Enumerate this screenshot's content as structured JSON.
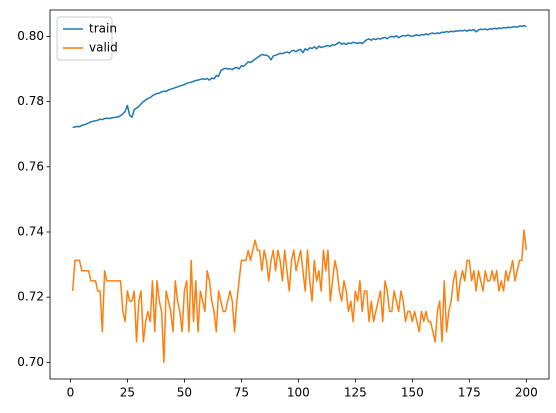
{
  "chart_data": {
    "type": "line",
    "x": [
      1,
      2,
      3,
      4,
      5,
      6,
      7,
      8,
      9,
      10,
      11,
      12,
      13,
      14,
      15,
      16,
      17,
      18,
      19,
      20,
      21,
      22,
      23,
      24,
      25,
      26,
      27,
      28,
      29,
      30,
      31,
      32,
      33,
      34,
      35,
      36,
      37,
      38,
      39,
      40,
      41,
      42,
      43,
      44,
      45,
      46,
      47,
      48,
      49,
      50,
      51,
      52,
      53,
      54,
      55,
      56,
      57,
      58,
      59,
      60,
      61,
      62,
      63,
      64,
      65,
      66,
      67,
      68,
      69,
      70,
      71,
      72,
      73,
      74,
      75,
      76,
      77,
      78,
      79,
      80,
      81,
      82,
      83,
      84,
      85,
      86,
      87,
      88,
      89,
      90,
      91,
      92,
      93,
      94,
      95,
      96,
      97,
      98,
      99,
      100,
      101,
      102,
      103,
      104,
      105,
      106,
      107,
      108,
      109,
      110,
      111,
      112,
      113,
      114,
      115,
      116,
      117,
      118,
      119,
      120,
      121,
      122,
      123,
      124,
      125,
      126,
      127,
      128,
      129,
      130,
      131,
      132,
      133,
      134,
      135,
      136,
      137,
      138,
      139,
      140,
      141,
      142,
      143,
      144,
      145,
      146,
      147,
      148,
      149,
      150,
      151,
      152,
      153,
      154,
      155,
      156,
      157,
      158,
      159,
      160,
      161,
      162,
      163,
      164,
      165,
      166,
      167,
      168,
      169,
      170,
      171,
      172,
      173,
      174,
      175,
      176,
      177,
      178,
      179,
      180,
      181,
      182,
      183,
      184,
      185,
      186,
      187,
      188,
      189,
      190,
      191,
      192,
      193,
      194,
      195,
      196,
      197,
      198,
      199,
      200
    ],
    "series": [
      {
        "name": "train",
        "color": "#1f77b4",
        "values": [
          0.7721,
          0.7722,
          0.7724,
          0.7723,
          0.7727,
          0.7729,
          0.7731,
          0.7735,
          0.7738,
          0.774,
          0.7741,
          0.7743,
          0.7746,
          0.7745,
          0.7748,
          0.7749,
          0.7748,
          0.775,
          0.7751,
          0.7752,
          0.7753,
          0.7757,
          0.7762,
          0.777,
          0.7788,
          0.7758,
          0.7752,
          0.7775,
          0.778,
          0.7785,
          0.7793,
          0.78,
          0.7805,
          0.781,
          0.7812,
          0.7818,
          0.7822,
          0.7825,
          0.7826,
          0.783,
          0.7832,
          0.7831,
          0.7836,
          0.7838,
          0.784,
          0.7843,
          0.7845,
          0.7848,
          0.785,
          0.7852,
          0.7856,
          0.7858,
          0.786,
          0.7862,
          0.7865,
          0.7866,
          0.7868,
          0.787,
          0.7868,
          0.7871,
          0.7866,
          0.7872,
          0.787,
          0.788,
          0.7878,
          0.7895,
          0.79,
          0.7902,
          0.79,
          0.7901,
          0.7898,
          0.7903,
          0.7905,
          0.79,
          0.791,
          0.7908,
          0.7915,
          0.7922,
          0.792,
          0.7925,
          0.793,
          0.7935,
          0.794,
          0.7945,
          0.7942,
          0.7943,
          0.7938,
          0.7928,
          0.794,
          0.7942,
          0.7945,
          0.7948,
          0.7947,
          0.795,
          0.7952,
          0.7949,
          0.7955,
          0.7957,
          0.7953,
          0.7958,
          0.796,
          0.795,
          0.7962,
          0.7958,
          0.7965,
          0.7963,
          0.7968,
          0.7962,
          0.797,
          0.7966,
          0.7968,
          0.797,
          0.7972,
          0.7969,
          0.7975,
          0.7973,
          0.7978,
          0.7982,
          0.7976,
          0.7979,
          0.7975,
          0.798,
          0.7978,
          0.7982,
          0.798,
          0.7979,
          0.7981,
          0.7978,
          0.7984,
          0.799,
          0.7992,
          0.7988,
          0.7993,
          0.799,
          0.7994,
          0.7992,
          0.7995,
          0.7997,
          0.7993,
          0.7998,
          0.8,
          0.7998,
          0.8002,
          0.7996,
          0.8,
          0.8003,
          0.8001,
          0.8004,
          0.8002,
          0.8,
          0.8003,
          0.8005,
          0.8002,
          0.8006,
          0.8004,
          0.8008,
          0.8005,
          0.8009,
          0.801,
          0.8008,
          0.8011,
          0.8009,
          0.8013,
          0.8012,
          0.8015,
          0.8013,
          0.8016,
          0.8014,
          0.8017,
          0.8016,
          0.8018,
          0.8017,
          0.8019,
          0.8016,
          0.802,
          0.8018,
          0.8021,
          0.8014,
          0.802,
          0.8022,
          0.8021,
          0.8023,
          0.802,
          0.8024,
          0.8022,
          0.8025,
          0.8023,
          0.8026,
          0.8024,
          0.8027,
          0.8026,
          0.8028,
          0.8027,
          0.8029,
          0.803,
          0.8028,
          0.8032,
          0.8031,
          0.8033,
          0.803
        ]
      },
      {
        "name": "valid",
        "color": "#ff7f0e",
        "values": [
          0.7219,
          0.7313,
          0.7313,
          0.7313,
          0.7281,
          0.7281,
          0.7281,
          0.7281,
          0.725,
          0.725,
          0.725,
          0.7219,
          0.7219,
          0.7094,
          0.7281,
          0.725,
          0.725,
          0.725,
          0.725,
          0.725,
          0.725,
          0.725,
          0.7156,
          0.7125,
          0.7219,
          0.7188,
          0.7188,
          0.7219,
          0.7063,
          0.7188,
          0.7219,
          0.7063,
          0.7125,
          0.7156,
          0.7125,
          0.725,
          0.7094,
          0.725,
          0.7188,
          0.7156,
          0.7,
          0.7219,
          0.7188,
          0.7156,
          0.7094,
          0.725,
          0.7188,
          0.7156,
          0.7094,
          0.7219,
          0.725,
          0.7094,
          0.7313,
          0.7125,
          0.725,
          0.7094,
          0.7219,
          0.7188,
          0.7156,
          0.7281,
          0.725,
          0.7188,
          0.7156,
          0.7094,
          0.7219,
          0.7188,
          0.7156,
          0.7156,
          0.7188,
          0.7219,
          0.7188,
          0.7094,
          0.7188,
          0.725,
          0.7313,
          0.7313,
          0.7313,
          0.7344,
          0.7313,
          0.7344,
          0.7375,
          0.7344,
          0.7344,
          0.7281,
          0.7344,
          0.7313,
          0.725,
          0.7313,
          0.7344,
          0.7281,
          0.7344,
          0.7313,
          0.725,
          0.7344,
          0.7281,
          0.7219,
          0.7313,
          0.7344,
          0.7281,
          0.7313,
          0.7344,
          0.7281,
          0.7219,
          0.7344,
          0.725,
          0.7188,
          0.7313,
          0.725,
          0.7281,
          0.7219,
          0.7344,
          0.7281,
          0.7344,
          0.7188,
          0.725,
          0.7313,
          0.7281,
          0.7219,
          0.7188,
          0.725,
          0.7219,
          0.7156,
          0.7188,
          0.7125,
          0.7219,
          0.7188,
          0.725,
          0.7156,
          0.7219,
          0.7219,
          0.7125,
          0.7188,
          0.7125,
          0.7156,
          0.7188,
          0.7219,
          0.7125,
          0.725,
          0.7219,
          0.7156,
          0.7156,
          0.7219,
          0.7188,
          0.7156,
          0.7219,
          0.7188,
          0.7125,
          0.7156,
          0.7156,
          0.7125,
          0.7156,
          0.7125,
          0.7094,
          0.7156,
          0.7125,
          0.7156,
          0.7125,
          0.7125,
          0.7094,
          0.7063,
          0.7156,
          0.7188,
          0.7063,
          0.725,
          0.7094,
          0.7156,
          0.7188,
          0.725,
          0.7281,
          0.7188,
          0.725,
          0.7281,
          0.725,
          0.7313,
          0.7313,
          0.725,
          0.7281,
          0.7219,
          0.7281,
          0.725,
          0.7219,
          0.7281,
          0.725,
          0.725,
          0.7281,
          0.725,
          0.7281,
          0.7219,
          0.725,
          0.7219,
          0.7281,
          0.725,
          0.7281,
          0.7313,
          0.725,
          0.7281,
          0.7313,
          0.7313,
          0.7406,
          0.7344
        ]
      }
    ],
    "xlim": [
      -8.95,
      209.95
    ],
    "xticks": [
      0,
      25,
      50,
      75,
      100,
      125,
      150,
      175,
      200
    ],
    "ylim": [
      0.6949,
      0.8081
    ],
    "yticks": [
      {
        "value": 0.7,
        "label": "0.70"
      },
      0.72,
      0.74,
      0.76,
      0.78,
      {
        "value": 0.8,
        "label": "0.80"
      }
    ],
    "legend": "upper left"
  }
}
